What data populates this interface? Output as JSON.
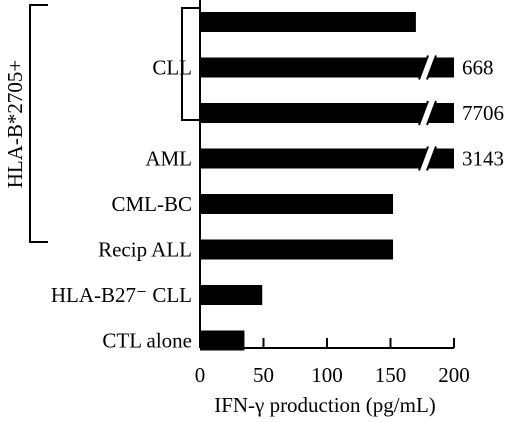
{
  "chart_data": {
    "type": "bar",
    "orientation": "horizontal",
    "categories": [
      "",
      "CLL",
      "",
      "AML",
      "CML-BC",
      "Recip ALL",
      "HLA-B27⁻ CLL",
      "CTL alone"
    ],
    "values": [
      170,
      668,
      7706,
      3143,
      152,
      152,
      49,
      35
    ],
    "value_labels": [
      "",
      "668",
      "7706",
      "3143",
      "",
      "",
      "",
      ""
    ],
    "axis_broken": [
      false,
      true,
      true,
      true,
      false,
      false,
      false,
      false
    ],
    "xlabel": "IFN-γ production (pg/mL)",
    "xlim": [
      0,
      200
    ],
    "xticks": [
      "0",
      "50",
      "100",
      "150",
      "200"
    ],
    "group_label": "HLA-B*2705+",
    "grid": false
  }
}
